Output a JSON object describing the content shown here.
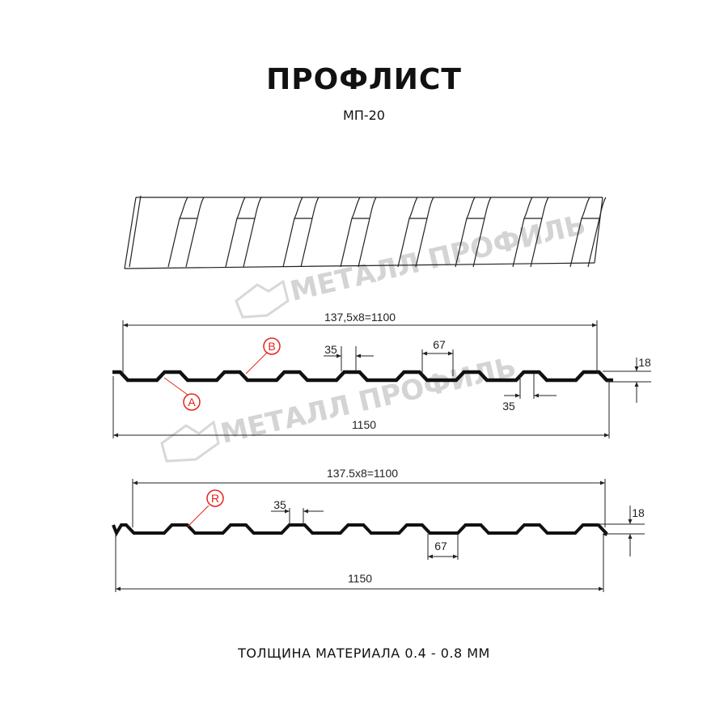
{
  "header": {
    "title": "ПРОФЛИСТ",
    "subtitle": "МП-20"
  },
  "footer": {
    "text": "ТОЛЩИНА МАТЕРИАЛА 0.4 - 0.8 ММ"
  },
  "watermark": {
    "text": "МЕТАЛЛ ПРОФИЛЬ"
  },
  "profile_1": {
    "pitch_dimension": "137,5x8=1100",
    "total_width": "1150",
    "ridge_width": "35",
    "trough_width": "67",
    "height": "18",
    "ridge_width_lower": "35",
    "marker_a": "A",
    "marker_b": "B"
  },
  "profile_2": {
    "pitch_dimension": "137.5x8=1100",
    "total_width": "1150",
    "ridge_width": "35",
    "trough_width": "67",
    "height": "18",
    "marker_r": "R"
  },
  "colors": {
    "line": "#111111",
    "marker": "#e5231b",
    "watermark": "#d4d4d4"
  }
}
